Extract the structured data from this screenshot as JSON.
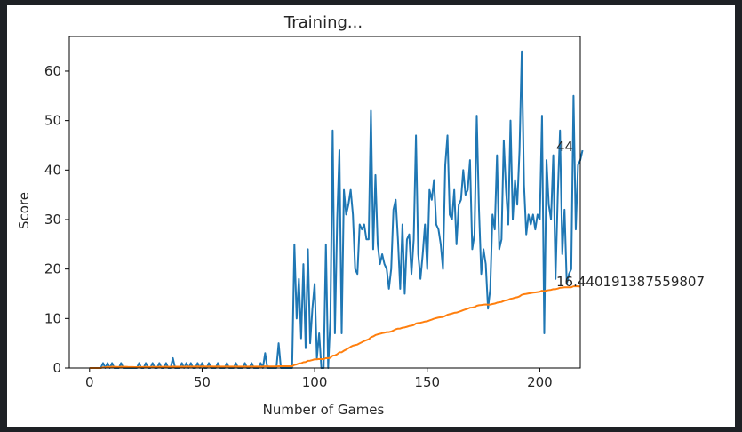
{
  "chart_data": {
    "type": "line",
    "title": "Training...",
    "xlabel": "Number of Games",
    "ylabel": "Score",
    "xlim": [
      -9,
      218
    ],
    "ylim": [
      0,
      67
    ],
    "grid": false,
    "x_ticks": [
      0,
      50,
      100,
      150,
      200
    ],
    "y_ticks": [
      0,
      10,
      20,
      30,
      40,
      50,
      60
    ],
    "end_labels": [
      "44",
      "16.440191387559807"
    ],
    "series": [
      {
        "color": "#1f77b4",
        "values": [
          0,
          0,
          0,
          0,
          0,
          0,
          1,
          0,
          1,
          0,
          1,
          0,
          0,
          0,
          1,
          0,
          0,
          0,
          0,
          0,
          0,
          0,
          1,
          0,
          0,
          1,
          0,
          0,
          1,
          0,
          0,
          1,
          0,
          0,
          1,
          0,
          0,
          2,
          0,
          0,
          0,
          1,
          0,
          1,
          0,
          1,
          0,
          0,
          1,
          0,
          1,
          0,
          0,
          1,
          0,
          0,
          0,
          1,
          0,
          0,
          0,
          1,
          0,
          0,
          0,
          1,
          0,
          0,
          0,
          1,
          0,
          0,
          1,
          0,
          0,
          0,
          1,
          0,
          3,
          0,
          0,
          0,
          0,
          0,
          5,
          0,
          0,
          0,
          0,
          0,
          0,
          25,
          10,
          18,
          6,
          21,
          4,
          24,
          5,
          12,
          17,
          2,
          7,
          0,
          0,
          25,
          0,
          10,
          48,
          7,
          30,
          44,
          7,
          36,
          31,
          33,
          36,
          31,
          20,
          19,
          29,
          28,
          29,
          26,
          26,
          52,
          24,
          39,
          25,
          21,
          23,
          21,
          20,
          16,
          20,
          32,
          34,
          26,
          16,
          29,
          15,
          26,
          27,
          19,
          26,
          47,
          23,
          18,
          23,
          29,
          20,
          36,
          34,
          38,
          29,
          28,
          25,
          20,
          41,
          47,
          31,
          30,
          36,
          25,
          33,
          34,
          40,
          35,
          36,
          42,
          24,
          27,
          51,
          32,
          19,
          24,
          21,
          12,
          16,
          31,
          28,
          43,
          24,
          26,
          46,
          36,
          29,
          50,
          30,
          38,
          33,
          44,
          64,
          37,
          27,
          31,
          29,
          31,
          28,
          31,
          30,
          51,
          7,
          42,
          33,
          30,
          43,
          18,
          35,
          48,
          23,
          32,
          17,
          19,
          20,
          55,
          28,
          41,
          42,
          44
        ]
      },
      {
        "color": "#ff7f0e",
        "values": [
          0,
          0,
          0,
          0,
          0,
          0,
          0.14,
          0.13,
          0.22,
          0.2,
          0.27,
          0.25,
          0.23,
          0.21,
          0.27,
          0.25,
          0.24,
          0.22,
          0.21,
          0.2,
          0.19,
          0.18,
          0.22,
          0.21,
          0.2,
          0.23,
          0.22,
          0.21,
          0.24,
          0.23,
          0.23,
          0.25,
          0.24,
          0.24,
          0.26,
          0.25,
          0.24,
          0.29,
          0.28,
          0.28,
          0.27,
          0.29,
          0.28,
          0.3,
          0.29,
          0.3,
          0.3,
          0.29,
          0.31,
          0.3,
          0.31,
          0.31,
          0.3,
          0.31,
          0.31,
          0.3,
          0.29,
          0.31,
          0.3,
          0.3,
          0.29,
          0.31,
          0.3,
          0.3,
          0.29,
          0.3,
          0.3,
          0.29,
          0.29,
          0.3,
          0.3,
          0.29,
          0.3,
          0.3,
          0.29,
          0.29,
          0.3,
          0.29,
          0.33,
          0.33,
          0.32,
          0.32,
          0.32,
          0.31,
          0.37,
          0.37,
          0.36,
          0.36,
          0.35,
          0.35,
          0.35,
          0.62,
          0.72,
          0.9,
          0.96,
          1.17,
          1.21,
          1.45,
          1.49,
          1.6,
          1.76,
          1.76,
          1.82,
          1.8,
          1.78,
          2.0,
          1.98,
          2.07,
          2.5,
          2.54,
          2.78,
          3.16,
          3.18,
          3.49,
          3.73,
          3.99,
          4.28,
          4.51,
          4.62,
          4.73,
          4.98,
          5.21,
          5.45,
          5.63,
          5.8,
          6.2,
          6.38,
          6.65,
          6.8,
          6.91,
          7.04,
          7.13,
          7.25,
          7.26,
          7.37,
          7.59,
          7.82,
          7.96,
          7.98,
          8.15,
          8.2,
          8.33,
          8.48,
          8.55,
          8.69,
          9.0,
          9.09,
          9.15,
          9.26,
          9.39,
          9.45,
          9.62,
          9.78,
          9.96,
          10.08,
          10.19,
          10.27,
          10.31,
          10.52,
          10.76,
          10.89,
          11.0,
          11.15,
          11.2,
          11.35,
          11.5,
          11.69,
          11.84,
          11.99,
          12.18,
          12.22,
          12.31,
          12.57,
          12.69,
          12.73,
          12.8,
          12.84,
          12.8,
          12.82,
          12.93,
          13.02,
          13.2,
          13.27,
          13.35,
          13.55,
          13.68,
          13.77,
          13.98,
          14.07,
          14.21,
          14.3,
          14.48,
          14.78,
          14.91,
          14.98,
          15.07,
          15.14,
          15.21,
          15.27,
          15.34,
          15.41,
          15.61,
          15.52,
          15.65,
          15.73,
          15.79,
          15.92,
          15.93,
          16.04,
          16.2,
          16.23,
          16.3,
          16.29,
          16.3,
          16.31,
          16.5,
          16.5,
          16.52,
          16.44
        ]
      }
    ]
  }
}
